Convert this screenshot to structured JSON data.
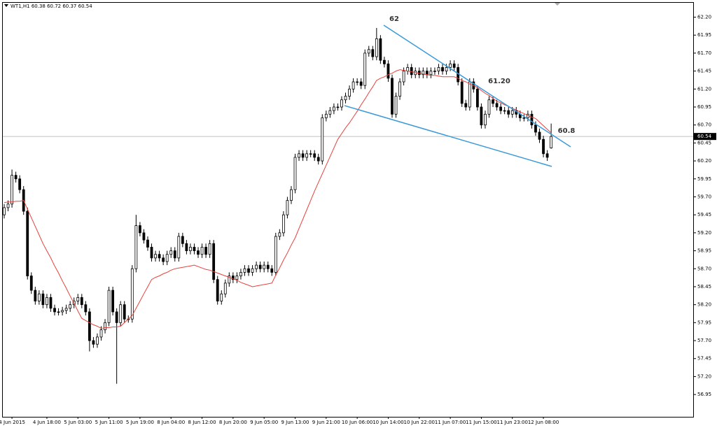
{
  "chart_data": {
    "type": "candlestick",
    "title": "WT1,H1 60.38 60.72 60.37 60.54",
    "categories": [
      null,
      null,
      "4 Jun 2015",
      null,
      null,
      null,
      null,
      null,
      null,
      null,
      null,
      "4 Jun 18:00",
      null,
      null,
      null,
      null,
      null,
      null,
      null,
      "5 Jun 03:00",
      null,
      null,
      null,
      null,
      null,
      null,
      null,
      "5 Jun 11:00",
      null,
      null,
      null,
      null,
      null,
      null,
      null,
      "5 Jun 19:00",
      null,
      null,
      null,
      null,
      null,
      null,
      null,
      "8 Jun 04:00",
      null,
      null,
      null,
      null,
      null,
      null,
      null,
      "8 Jun 12:00",
      null,
      null,
      null,
      null,
      null,
      null,
      null,
      "8 Jun 20:00",
      null,
      null,
      null,
      null,
      null,
      null,
      null,
      "9 Jun 05:00",
      null,
      null,
      null,
      null,
      null,
      null,
      null,
      "9 Jun 13:00",
      null,
      null,
      null,
      null,
      null,
      null,
      null,
      "9 Jun 21:00",
      null,
      null,
      null,
      null,
      null,
      null,
      null,
      "10 Jun 06:00",
      null,
      null,
      null,
      null,
      null,
      null,
      null,
      "10 Jun 14:00",
      null,
      null,
      null,
      null,
      null,
      null,
      null,
      "10 Jun 22:00",
      null,
      null,
      null,
      null,
      null,
      null,
      null,
      "11 Jun 07:00",
      null,
      null,
      null,
      null,
      null,
      null,
      null,
      "11 Jun 15:00",
      null,
      null,
      null,
      null,
      null,
      null,
      null,
      "11 Jun 23:00",
      null,
      null,
      null,
      null,
      null,
      null,
      null,
      "12 Jun 08:00",
      null,
      null
    ],
    "candles": {
      "bull_color": "#ffffff",
      "bear_color": "#000000",
      "outline_color": "#000000",
      "open": [
        59.45,
        59.55,
        59.6,
        60.0,
        59.95,
        59.8,
        59.5,
        58.6,
        58.4,
        58.25,
        58.35,
        58.2,
        58.3,
        58.15,
        58.1,
        58.1,
        58.12,
        58.15,
        58.2,
        58.25,
        58.3,
        58.2,
        58.1,
        57.7,
        57.65,
        57.75,
        57.85,
        57.95,
        58.4,
        58.1,
        57.95,
        58.2,
        58.0,
        58.0,
        58.7,
        59.3,
        59.2,
        59.1,
        59.0,
        58.85,
        58.9,
        58.85,
        58.8,
        58.9,
        58.95,
        58.85,
        59.15,
        59.05,
        58.95,
        59.0,
        58.95,
        58.9,
        59.0,
        58.9,
        59.05,
        58.55,
        58.25,
        58.35,
        58.5,
        58.6,
        58.55,
        58.6,
        58.65,
        58.7,
        58.65,
        58.7,
        58.75,
        58.7,
        58.75,
        58.7,
        58.65,
        59.15,
        59.2,
        59.45,
        59.65,
        59.8,
        60.25,
        60.3,
        60.25,
        60.3,
        60.3,
        60.25,
        60.2,
        60.8,
        60.85,
        60.9,
        60.95,
        60.95,
        61.05,
        61.1,
        61.2,
        61.3,
        61.3,
        61.25,
        61.7,
        61.75,
        61.65,
        61.9,
        61.6,
        61.55,
        61.35,
        60.85,
        61.1,
        61.3,
        61.45,
        61.5,
        61.4,
        61.45,
        61.4,
        61.45,
        61.4,
        61.45,
        61.45,
        61.5,
        61.45,
        61.5,
        61.55,
        61.5,
        61.3,
        61.0,
        60.95,
        61.3,
        61.2,
        60.95,
        60.7,
        60.85,
        61.05,
        61.0,
        60.95,
        60.9,
        60.9,
        60.85,
        60.9,
        60.85,
        60.8,
        60.8,
        60.85,
        60.7,
        60.6,
        60.5,
        60.3,
        60.38
      ],
      "high": [
        59.6,
        59.65,
        60.08,
        60.05,
        60.0,
        59.85,
        59.55,
        58.65,
        58.45,
        58.4,
        58.4,
        58.35,
        58.35,
        58.2,
        58.15,
        58.17,
        58.2,
        58.25,
        58.3,
        58.35,
        58.35,
        58.25,
        58.15,
        57.75,
        57.8,
        57.9,
        58.0,
        58.45,
        58.45,
        58.15,
        58.25,
        58.25,
        58.05,
        58.75,
        59.45,
        59.35,
        59.25,
        59.15,
        59.05,
        58.95,
        58.95,
        58.9,
        58.95,
        59.0,
        59.0,
        59.2,
        59.2,
        59.1,
        59.05,
        59.05,
        59.0,
        59.05,
        59.05,
        59.1,
        59.1,
        58.6,
        58.4,
        58.55,
        58.65,
        58.65,
        58.65,
        58.7,
        58.75,
        58.75,
        58.75,
        58.8,
        58.8,
        58.8,
        58.8,
        58.75,
        59.2,
        59.25,
        59.5,
        59.7,
        59.85,
        60.3,
        60.35,
        60.35,
        60.35,
        60.35,
        60.35,
        60.3,
        60.85,
        60.9,
        60.95,
        61.0,
        61.0,
        61.1,
        61.15,
        61.25,
        61.35,
        61.35,
        61.35,
        61.75,
        61.8,
        61.8,
        62.05,
        61.95,
        61.65,
        61.6,
        61.4,
        61.15,
        61.35,
        61.5,
        61.55,
        61.55,
        61.5,
        61.5,
        61.5,
        61.5,
        61.5,
        61.5,
        61.55,
        61.55,
        61.55,
        61.6,
        61.6,
        61.55,
        61.35,
        61.05,
        61.35,
        61.35,
        61.25,
        61.0,
        60.9,
        61.1,
        61.1,
        61.05,
        61.0,
        60.95,
        60.95,
        60.95,
        60.95,
        60.9,
        60.85,
        60.9,
        60.9,
        60.75,
        60.65,
        60.55,
        60.35,
        60.72
      ],
      "low": [
        59.4,
        59.5,
        59.55,
        59.9,
        59.75,
        59.45,
        58.55,
        58.35,
        58.2,
        58.2,
        58.15,
        58.15,
        58.1,
        58.05,
        58.05,
        58.05,
        58.07,
        58.1,
        58.15,
        58.2,
        58.15,
        58.05,
        57.55,
        57.6,
        57.6,
        57.7,
        57.8,
        57.9,
        58.05,
        57.1,
        57.9,
        57.95,
        57.95,
        57.95,
        58.65,
        59.15,
        59.05,
        58.95,
        58.8,
        58.8,
        58.8,
        58.75,
        58.75,
        58.85,
        58.8,
        58.8,
        59.0,
        58.9,
        58.9,
        58.9,
        58.85,
        58.85,
        58.85,
        58.85,
        58.5,
        58.2,
        58.2,
        58.3,
        58.45,
        58.5,
        58.5,
        58.55,
        58.6,
        58.6,
        58.6,
        58.65,
        58.65,
        58.65,
        58.65,
        58.6,
        58.6,
        59.1,
        59.15,
        59.4,
        59.6,
        59.75,
        60.2,
        60.2,
        60.2,
        60.25,
        60.2,
        60.15,
        60.15,
        60.75,
        60.8,
        60.85,
        60.9,
        60.9,
        61.0,
        61.05,
        61.15,
        61.25,
        61.2,
        61.2,
        61.65,
        61.6,
        61.6,
        61.55,
        61.5,
        61.3,
        60.8,
        60.8,
        61.05,
        61.25,
        61.4,
        61.35,
        61.35,
        61.35,
        61.35,
        61.35,
        61.35,
        61.4,
        61.4,
        61.4,
        61.4,
        61.45,
        61.45,
        61.25,
        60.95,
        60.9,
        60.9,
        61.15,
        60.9,
        60.65,
        60.65,
        60.8,
        60.95,
        60.9,
        60.85,
        60.85,
        60.8,
        60.8,
        60.8,
        60.75,
        60.75,
        60.75,
        60.65,
        60.55,
        60.45,
        60.25,
        60.2,
        60.37
      ],
      "close": [
        59.55,
        59.6,
        60.0,
        59.95,
        59.8,
        59.5,
        58.6,
        58.4,
        58.25,
        58.35,
        58.2,
        58.3,
        58.15,
        58.1,
        58.1,
        58.12,
        58.15,
        58.2,
        58.25,
        58.3,
        58.2,
        58.1,
        57.7,
        57.65,
        57.75,
        57.85,
        57.95,
        58.4,
        58.1,
        57.95,
        58.2,
        58.0,
        58.0,
        58.7,
        59.3,
        59.2,
        59.1,
        59.0,
        58.85,
        58.9,
        58.85,
        58.8,
        58.9,
        58.95,
        58.85,
        59.15,
        59.05,
        58.95,
        59.0,
        58.95,
        58.9,
        59.0,
        58.9,
        59.05,
        58.55,
        58.25,
        58.35,
        58.5,
        58.6,
        58.55,
        58.6,
        58.65,
        58.7,
        58.65,
        58.7,
        58.75,
        58.7,
        58.75,
        58.7,
        58.65,
        59.15,
        59.2,
        59.45,
        59.65,
        59.8,
        60.25,
        60.3,
        60.25,
        60.3,
        60.3,
        60.25,
        60.2,
        60.8,
        60.85,
        60.9,
        60.95,
        60.95,
        61.05,
        61.1,
        61.2,
        61.3,
        61.3,
        61.25,
        61.7,
        61.75,
        61.65,
        61.9,
        61.6,
        61.55,
        61.35,
        60.85,
        61.1,
        61.3,
        61.45,
        61.5,
        61.4,
        61.45,
        61.4,
        61.45,
        61.4,
        61.45,
        61.45,
        61.5,
        61.45,
        61.5,
        61.55,
        61.5,
        61.3,
        61.0,
        60.95,
        61.3,
        61.2,
        60.95,
        60.7,
        60.85,
        61.05,
        61.0,
        60.95,
        60.9,
        60.9,
        60.85,
        60.9,
        60.85,
        60.8,
        60.8,
        60.85,
        60.7,
        60.6,
        60.5,
        60.3,
        60.25,
        60.54
      ]
    },
    "moving_average": {
      "color": "#e8413c",
      "values": [
        59.62,
        59.63,
        59.63,
        59.64,
        59.64,
        59.65,
        59.53,
        59.41,
        59.29,
        59.17,
        59.05,
        58.95,
        58.85,
        58.74,
        58.64,
        58.53,
        58.43,
        58.32,
        58.22,
        58.11,
        58.01,
        57.98,
        57.95,
        57.92,
        57.9,
        57.87,
        57.88,
        57.88,
        57.89,
        57.89,
        57.9,
        57.95,
        58.0,
        58.05,
        58.15,
        58.25,
        58.35,
        58.45,
        58.55,
        58.58,
        58.6,
        58.63,
        58.65,
        58.68,
        58.7,
        58.71,
        58.72,
        58.73,
        58.74,
        58.75,
        58.73,
        58.71,
        58.69,
        58.68,
        58.66,
        58.64,
        58.62,
        58.6,
        58.58,
        58.56,
        58.54,
        58.51,
        58.49,
        58.47,
        58.45,
        58.46,
        58.47,
        58.48,
        58.49,
        58.5,
        58.61,
        58.71,
        58.82,
        58.92,
        59.03,
        59.13,
        59.26,
        59.39,
        59.52,
        59.65,
        59.78,
        59.9,
        60.02,
        60.14,
        60.26,
        60.38,
        60.5,
        60.58,
        60.66,
        60.73,
        60.81,
        60.89,
        60.98,
        61.06,
        61.15,
        61.23,
        61.32,
        61.35,
        61.37,
        61.4,
        61.42,
        61.45,
        61.47,
        61.46,
        61.45,
        61.44,
        61.43,
        61.42,
        61.41,
        61.4,
        61.39,
        61.39,
        61.38,
        61.37,
        61.37,
        61.37,
        61.37,
        61.35,
        61.32,
        61.3,
        61.27,
        61.25,
        61.22,
        61.18,
        61.14,
        61.11,
        61.07,
        61.03,
        61.01,
        60.98,
        60.96,
        60.93,
        60.91,
        60.88,
        60.86,
        60.83,
        60.81,
        60.79,
        60.74,
        60.69,
        60.64,
        60.59
      ]
    },
    "current_price": 60.54,
    "annotations": [
      "62",
      "61.20",
      "60.8"
    ],
    "trendline_color": "#3a9ad9",
    "ylim": [
      56.64,
      62.39
    ],
    "yticks": [
      {
        "value": 62.2,
        "label": "62.20"
      },
      61.95,
      {
        "value": 61.7,
        "label": "61.70"
      },
      61.45,
      {
        "value": 61.2,
        "label": "61.20"
      },
      60.95,
      {
        "value": 60.7,
        "label": "60.70"
      },
      60.45,
      {
        "value": 60.2,
        "label": "60.20"
      },
      59.95,
      {
        "value": 59.7,
        "label": "59.70"
      },
      59.45,
      {
        "value": 59.2,
        "label": "59.20"
      },
      58.95,
      {
        "value": 58.7,
        "label": "58.70"
      },
      58.45,
      {
        "value": 58.2,
        "label": "58.20"
      },
      57.95,
      {
        "value": 57.7,
        "label": "57.70"
      },
      57.45,
      {
        "value": 57.2,
        "label": "57.20"
      },
      56.95
    ],
    "grid": false
  }
}
